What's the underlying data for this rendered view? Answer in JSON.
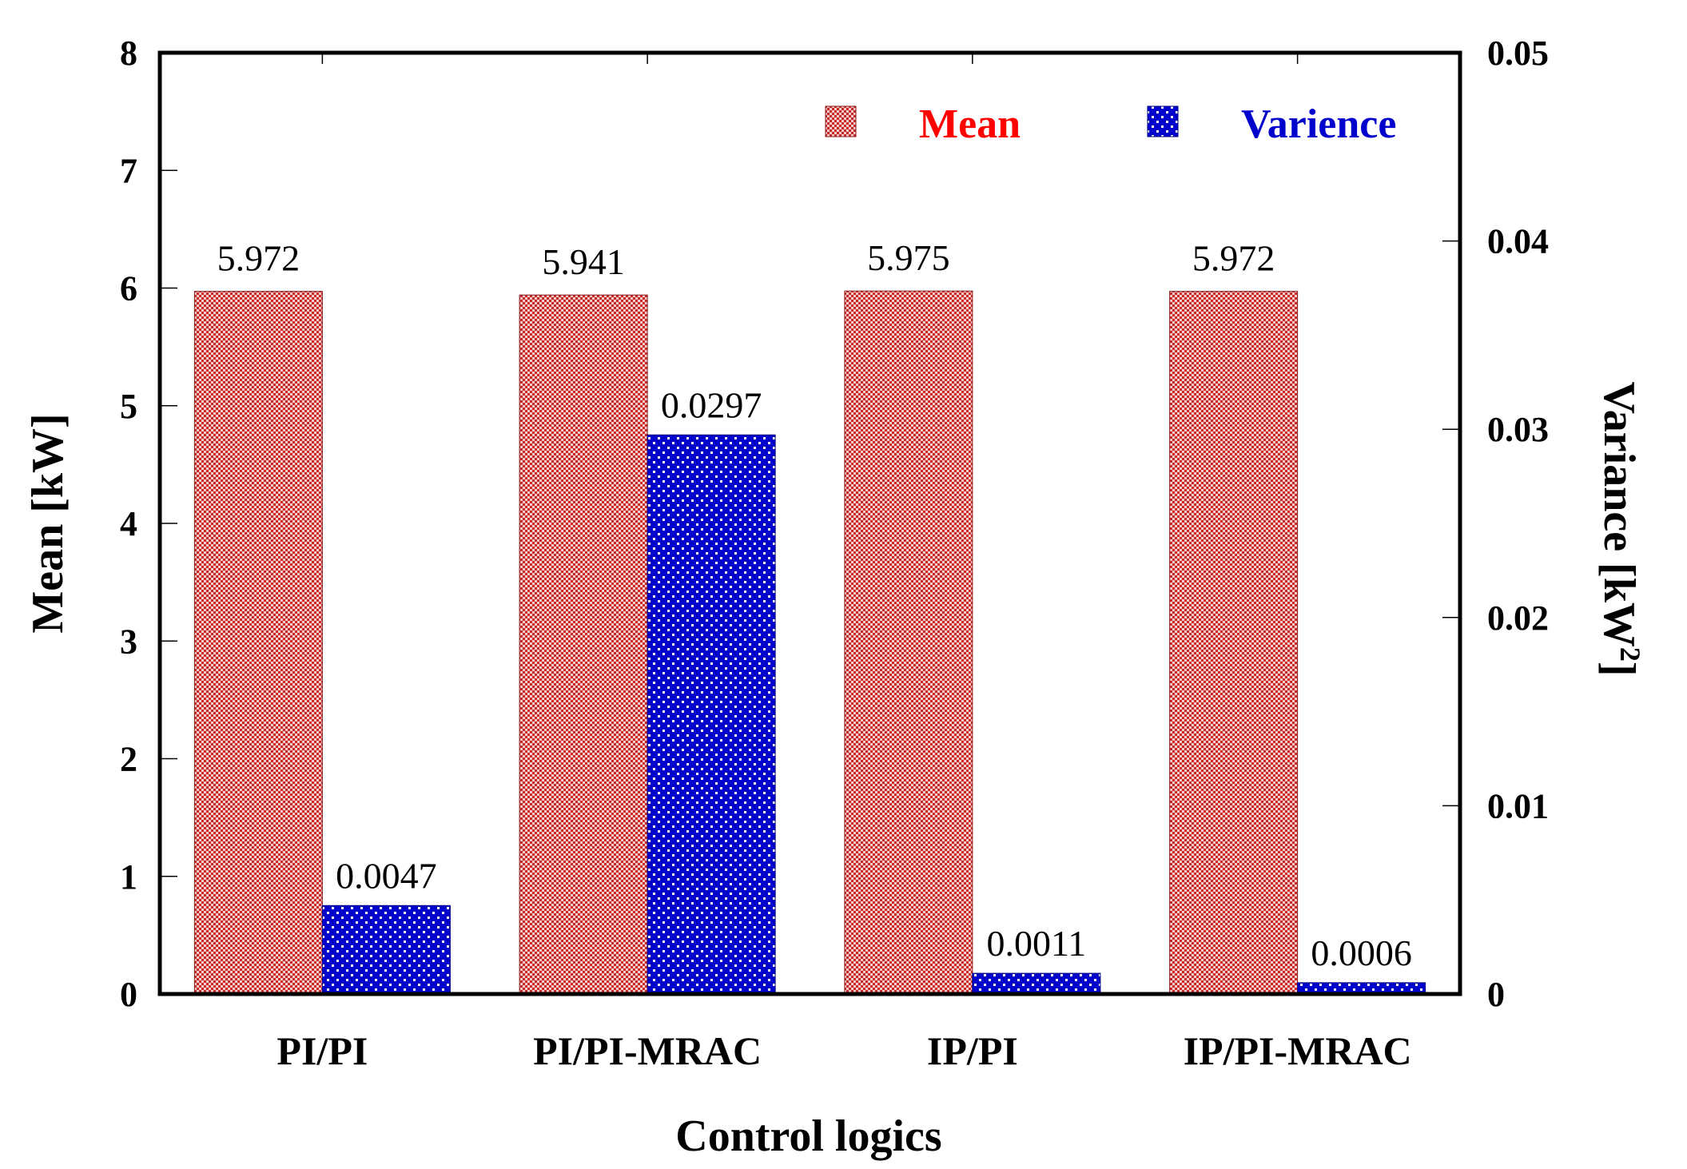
{
  "chart_data": {
    "type": "bar",
    "categories": [
      "PI/PI",
      "PI/PI-MRAC",
      "IP/PI",
      "IP/PI-MRAC"
    ],
    "series": [
      {
        "name": "Mean",
        "axis": "left",
        "values": [
          5.972,
          5.941,
          5.975,
          5.972
        ],
        "labels": [
          "5.972",
          "5.941",
          "5.975",
          "5.972"
        ],
        "color": "#cc2a2a"
      },
      {
        "name": "Varience",
        "axis": "right",
        "values": [
          0.0047,
          0.0297,
          0.0011,
          0.0006
        ],
        "labels": [
          "0.0047",
          "0.0297",
          "0.0011",
          "0.0006"
        ],
        "color": "#0000cc"
      }
    ],
    "xlabel": "Control logics",
    "ylabel_left": "Mean [kW]",
    "ylabel_right": "Variance [kW",
    "ylabel_right_sup": "2",
    "ylabel_right_close": "]",
    "ylim_left": [
      0,
      8
    ],
    "ylim_right": [
      0,
      0.05
    ],
    "yticks_left": [
      "0",
      "1",
      "2",
      "3",
      "4",
      "5",
      "6",
      "7",
      "8"
    ],
    "yticks_right": [
      "0",
      "0.01",
      "0.02",
      "0.03",
      "0.04",
      "0.05"
    ],
    "legend_position": "top-right",
    "legend_colors": {
      "Mean": "#ff0000",
      "Varience": "#0000cc"
    }
  }
}
